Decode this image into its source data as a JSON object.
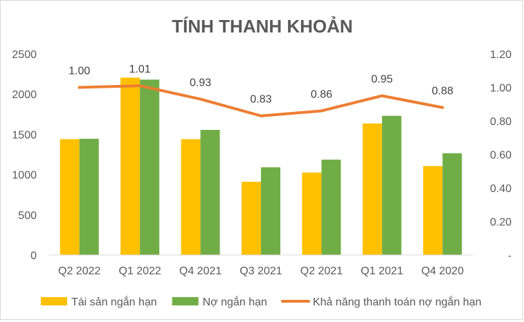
{
  "chart_data": {
    "type": "bar",
    "title": "TÍNH THANH KHOẢN",
    "categories": [
      "Q2 2022",
      "Q1 2022",
      "Q4 2021",
      "Q3 2021",
      "Q2 2021",
      "Q1 2021",
      "Q4 2020"
    ],
    "series": [
      {
        "name": "Tài sản ngắn hạn",
        "type": "bar",
        "axis": "left",
        "color": "#FFC000",
        "values": [
          1440,
          2205,
          1440,
          910,
          1025,
          1635,
          1105
        ]
      },
      {
        "name": "Nợ ngắn hạn",
        "type": "bar",
        "axis": "left",
        "color": "#70AD47",
        "values": [
          1445,
          2180,
          1555,
          1090,
          1185,
          1730,
          1265
        ]
      },
      {
        "name": "Khả năng thanh toán nợ ngắn hạn",
        "type": "line",
        "axis": "right",
        "color": "#ED7D31",
        "values": [
          1.0,
          1.01,
          0.93,
          0.83,
          0.86,
          0.95,
          0.88
        ],
        "labels": [
          "1.00",
          "1.01",
          "0.93",
          "0.83",
          "0.86",
          "0.95",
          "0.88"
        ]
      }
    ],
    "y_left": {
      "ylim": [
        0,
        2500
      ],
      "ticks": [
        "0",
        "500",
        "1000",
        "1500",
        "2000",
        "2500"
      ]
    },
    "y_right": {
      "ylim": [
        0,
        1.2
      ],
      "ticks": [
        "-",
        "0.20",
        "0.40",
        "0.60",
        "0.80",
        "1.00",
        "1.20"
      ]
    },
    "grid": false,
    "legend_position": "bottom"
  }
}
